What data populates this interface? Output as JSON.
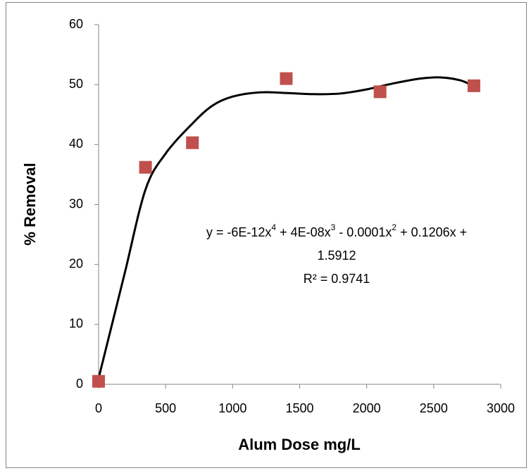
{
  "chart_data": {
    "type": "scatter",
    "x_label": "Alum Dose mg/L",
    "y_label": "% Removal",
    "x": [
      0,
      350,
      700,
      1400,
      2100,
      2800
    ],
    "values": [
      0.5,
      36.2,
      40.3,
      51,
      48.8,
      49.8
    ],
    "color": "#c0504d",
    "trendline": {
      "x": [
        0,
        100,
        200,
        350,
        500,
        700,
        850,
        1000,
        1200,
        1400,
        1600,
        1800,
        2000,
        2200,
        2400,
        2550,
        2700,
        2800
      ],
      "values": [
        1,
        10,
        19,
        32.5,
        38.5,
        43.5,
        46.5,
        48,
        48.7,
        48.6,
        48.4,
        48.5,
        49.2,
        50.2,
        51,
        51.2,
        50.7,
        49.7
      ],
      "color": "#000000"
    },
    "annotation": {
      "equation": [
        "y = -6E-12x",
        "4",
        " + 4E-08x",
        "3",
        " - 0.0001x",
        "2",
        " + 0.1206x +"
      ],
      "constant": "1.5912",
      "r_squared": "R² = 0.9741"
    },
    "xlim": [
      0,
      3000
    ],
    "xticks": [
      0,
      500,
      1000,
      1500,
      2000,
      2500,
      3000
    ],
    "ylim": [
      0,
      60
    ],
    "yticks": [
      0,
      10,
      20,
      30,
      40,
      50,
      60
    ]
  }
}
